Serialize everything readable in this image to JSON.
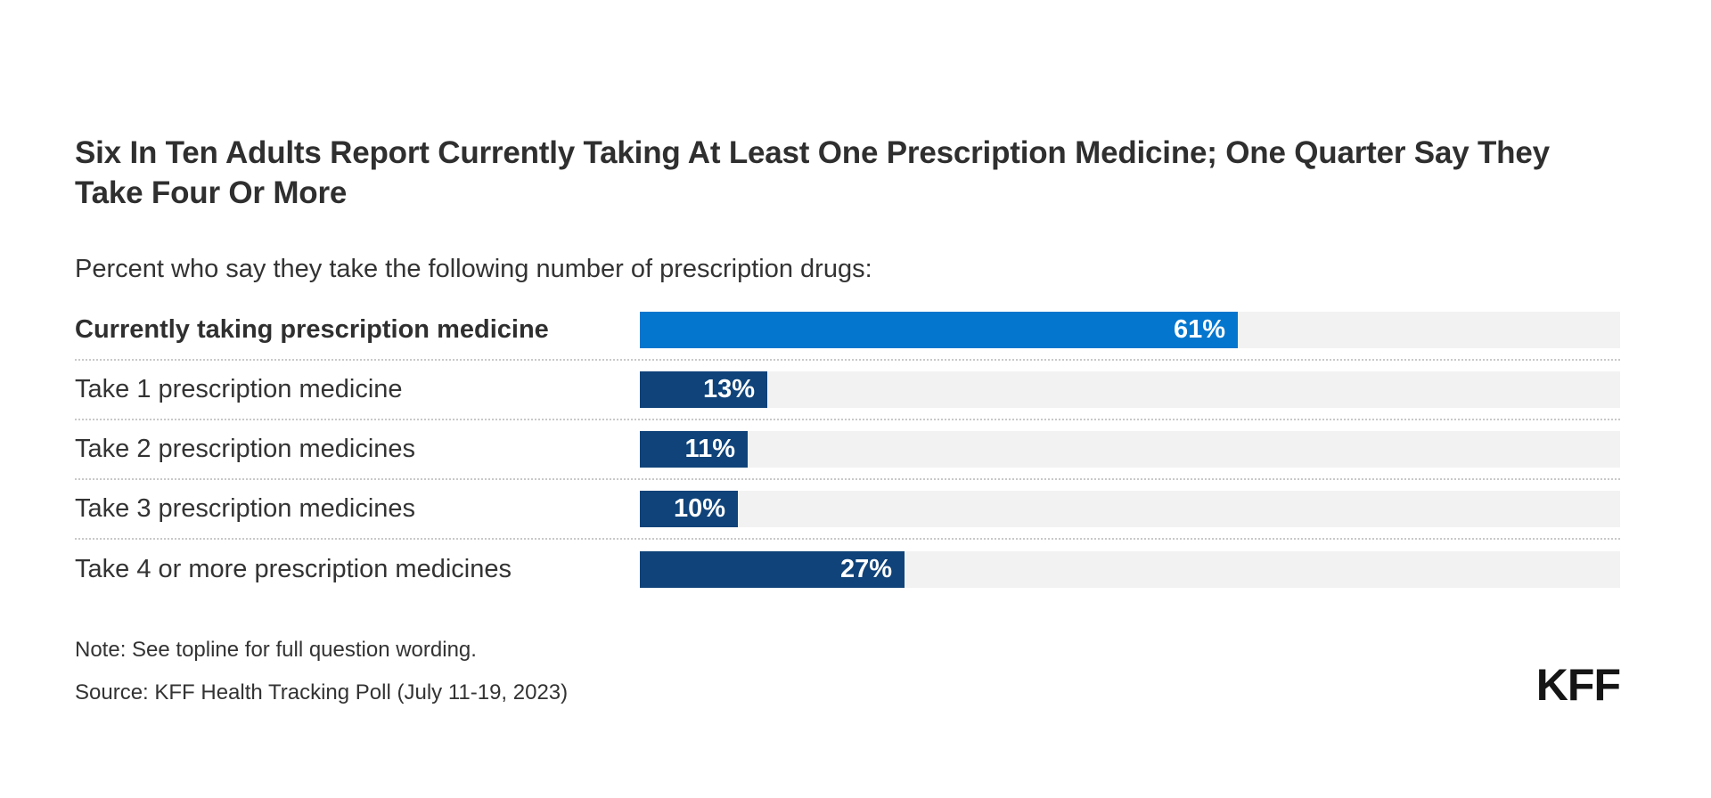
{
  "header": {
    "title": "Six In Ten Adults Report Currently Taking At Least One Prescription Medicine; One Quarter Say They Take Four Or More",
    "subtitle": "Percent who say they take the following number of prescription drugs:"
  },
  "chart_data": {
    "type": "bar",
    "orientation": "horizontal",
    "categories": [
      "Currently taking prescription medicine",
      "Take 1 prescription medicine",
      "Take 2 prescription medicines",
      "Take 3 prescription medicines",
      "Take 4 or more prescription medicines"
    ],
    "values": [
      61,
      13,
      11,
      10,
      27
    ],
    "value_labels": [
      "61%",
      "13%",
      "11%",
      "10%",
      "27%"
    ],
    "xlim": [
      0,
      100
    ],
    "grid": false,
    "legend": false,
    "highlight_row_index": 0,
    "title": "Six In Ten Adults Report Currently Taking At Least One Prescription Medicine; One Quarter Say They Take Four Or More",
    "xlabel": "",
    "ylabel": ""
  },
  "colors": {
    "highlight_bar": "#0476ce",
    "bar": "#0f4379",
    "track": "#f2f2f2",
    "title_text": "#2f2f2f",
    "body_text": "#333333",
    "value_text": "#ffffff",
    "separator": "#c9c9c9"
  },
  "footer": {
    "note": "Note: See topline for full question wording.",
    "source": "Source: KFF Health Tracking Poll (July 11-19, 2023)",
    "logo": "KFF"
  }
}
